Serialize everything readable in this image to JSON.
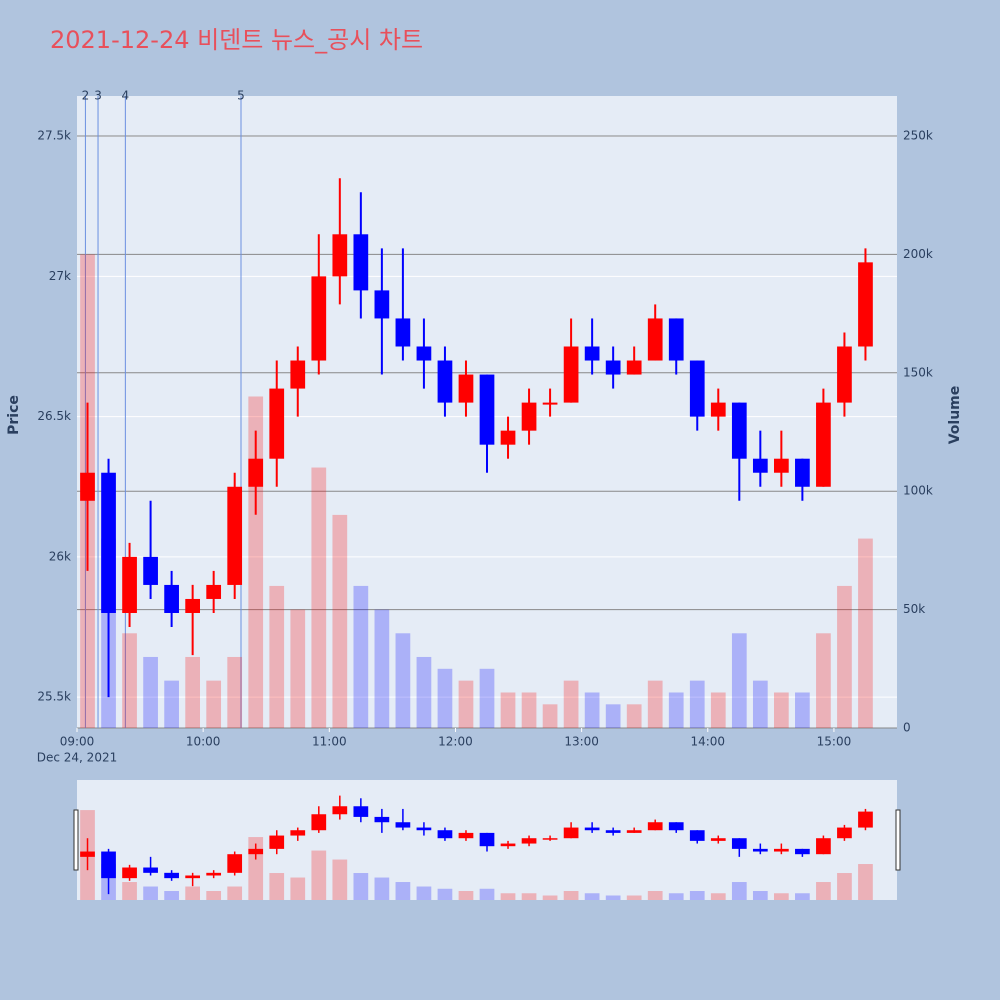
{
  "chart_data": {
    "type": "candlestick",
    "title": "2021-12-24 비덴트 뉴스_공시 차트",
    "ylabel": "Price",
    "y2label": "Volume",
    "x": [
      "2021-12-24 09:00",
      "2021-12-24 09:10",
      "2021-12-24 09:20",
      "2021-12-24 09:30",
      "2021-12-24 09:40",
      "2021-12-24 09:50",
      "2021-12-24 10:00",
      "2021-12-24 10:10",
      "2021-12-24 10:20",
      "2021-12-24 10:30",
      "2021-12-24 10:40",
      "2021-12-24 10:50",
      "2021-12-24 11:00",
      "2021-12-24 11:10",
      "2021-12-24 11:20",
      "2021-12-24 11:30",
      "2021-12-24 11:40",
      "2021-12-24 11:50",
      "2021-12-24 12:00",
      "2021-12-24 12:10",
      "2021-12-24 12:20",
      "2021-12-24 12:30",
      "2021-12-24 12:40",
      "2021-12-24 12:50",
      "2021-12-24 13:00",
      "2021-12-24 13:10",
      "2021-12-24 13:20",
      "2021-12-24 13:30",
      "2021-12-24 13:40",
      "2021-12-24 13:50",
      "2021-12-24 14:00",
      "2021-12-24 14:10",
      "2021-12-24 14:20",
      "2021-12-24 14:30",
      "2021-12-24 14:40",
      "2021-12-24 14:50",
      "2021-12-24 15:00",
      "2021-12-24 15:10"
    ],
    "open": [
      26200,
      26300,
      25800,
      26000,
      25900,
      25800,
      25850,
      25900,
      26250,
      26350,
      26600,
      26700,
      27000,
      27150,
      26950,
      26850,
      26750,
      26700,
      26550,
      26650,
      26400,
      26450,
      26550,
      26550,
      26750,
      26700,
      26650,
      26700,
      26850,
      26700,
      26500,
      26550,
      26350,
      26300,
      26350,
      26250,
      26550,
      26750
    ],
    "high": [
      26550,
      26350,
      26050,
      26200,
      25950,
      25900,
      25950,
      26300,
      26450,
      26700,
      26750,
      27150,
      27350,
      27300,
      27100,
      27100,
      26850,
      26750,
      26700,
      26650,
      26500,
      26600,
      26600,
      26850,
      26850,
      26750,
      26750,
      26900,
      26850,
      26700,
      26600,
      26550,
      26450,
      26450,
      26350,
      26600,
      26800,
      27100
    ],
    "low": [
      25950,
      25500,
      25750,
      25850,
      25750,
      25650,
      25800,
      25850,
      26150,
      26250,
      26500,
      26650,
      26900,
      26850,
      26650,
      26700,
      26600,
      26500,
      26500,
      26300,
      26350,
      26400,
      26500,
      26550,
      26650,
      26600,
      26650,
      26700,
      26650,
      26450,
      26450,
      26200,
      26250,
      26250,
      26200,
      26250,
      26500,
      26700
    ],
    "close": [
      26300,
      25800,
      26000,
      25900,
      25800,
      25850,
      25900,
      26250,
      26350,
      26600,
      26700,
      27000,
      27150,
      26950,
      26850,
      26750,
      26700,
      26550,
      26650,
      26400,
      26450,
      26550,
      26550,
      26750,
      26700,
      26650,
      26700,
      26850,
      26700,
      26500,
      26550,
      26350,
      26300,
      26350,
      26250,
      26550,
      26750,
      27050
    ],
    "volume": [
      200000,
      80000,
      40000,
      30000,
      20000,
      30000,
      20000,
      30000,
      140000,
      60000,
      50000,
      110000,
      90000,
      60000,
      50000,
      40000,
      30000,
      25000,
      20000,
      25000,
      15000,
      15000,
      10000,
      20000,
      15000,
      10000,
      10000,
      20000,
      15000,
      20000,
      15000,
      40000,
      20000,
      15000,
      15000,
      40000,
      60000,
      80000
    ],
    "increasing_color": "#ff0000",
    "decreasing_color": "#0000ff",
    "xlim": [
      "2021-12-24 09:00",
      "2021-12-24 15:30"
    ],
    "xticks": [
      {
        "value": "2021-12-24 09:00",
        "label": "09:00"
      },
      {
        "value": "2021-12-24 10:00",
        "label": "10:00"
      },
      {
        "value": "2021-12-24 11:00",
        "label": "11:00"
      },
      {
        "value": "2021-12-24 12:00",
        "label": "12:00"
      },
      {
        "value": "2021-12-24 13:00",
        "label": "13:00"
      },
      {
        "value": "2021-12-24 14:00",
        "label": "14:00"
      },
      {
        "value": "2021-12-24 15:00",
        "label": "15:00"
      }
    ],
    "xdate_label": "Dec 24, 2021",
    "ylim": [
      25390,
      27643
    ],
    "yticks": [
      {
        "value": 25500,
        "label": "25.5k"
      },
      {
        "value": 26000,
        "label": "26k"
      },
      {
        "value": 26500,
        "label": "26.5k"
      },
      {
        "value": 27000,
        "label": "27k"
      },
      {
        "value": 27500,
        "label": "27.5k"
      }
    ],
    "y2lim": [
      0,
      266900
    ],
    "y2ticks": [
      0,
      {
        "value": 50000,
        "label": "50k"
      },
      {
        "value": 100000,
        "label": "100k"
      },
      {
        "value": 150000,
        "label": "150k"
      },
      {
        "value": 200000,
        "label": "200k"
      },
      {
        "value": 250000,
        "label": "250k"
      }
    ],
    "annotations": [
      {
        "x": "2021-12-24 09:04",
        "label": "2"
      },
      {
        "x": "2021-12-24 09:10",
        "label": "3"
      },
      {
        "x": "2021-12-24 09:23",
        "label": "4"
      },
      {
        "x": "2021-12-24 10:18",
        "label": "5"
      }
    ],
    "rangeslider": true
  }
}
